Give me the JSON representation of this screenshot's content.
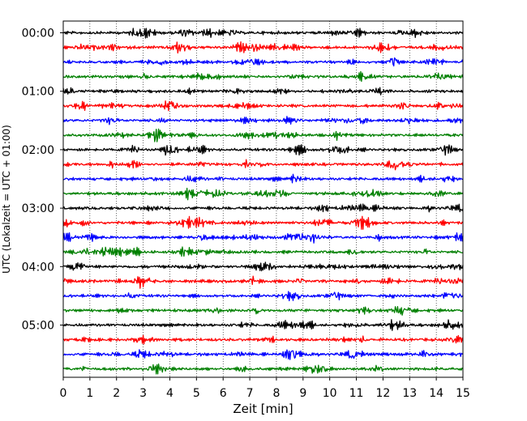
{
  "chart_data": {
    "type": "line",
    "title": "",
    "xlabel": "Zeit  [min]",
    "ylabel": "UTC (Lokalzeit = UTC + 01:00)",
    "xlim": [
      0,
      15
    ],
    "x_ticks": [
      0,
      1,
      2,
      3,
      4,
      5,
      6,
      7,
      8,
      9,
      10,
      11,
      12,
      13,
      14,
      15
    ],
    "y_tick_labels": [
      "00:00",
      "01:00",
      "02:00",
      "03:00",
      "04:00",
      "05:00"
    ],
    "trace_interval_minutes": 15,
    "trace_count": 24,
    "trace_colors": [
      "#000000",
      "#ff0000",
      "#0000ff",
      "#008000"
    ],
    "vertical_grid": true,
    "grid_style": "dotted",
    "legend": "none"
  }
}
